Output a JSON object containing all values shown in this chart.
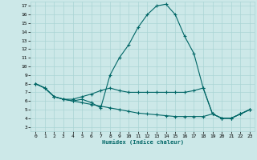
{
  "xlabel": "Humidex (Indice chaleur)",
  "x_ticks": [
    0,
    1,
    2,
    3,
    4,
    5,
    6,
    7,
    8,
    9,
    10,
    11,
    12,
    13,
    14,
    15,
    16,
    17,
    18,
    19,
    20,
    21,
    22,
    23
  ],
  "y_ticks": [
    3,
    4,
    5,
    6,
    7,
    8,
    9,
    10,
    11,
    12,
    13,
    14,
    15,
    16,
    17
  ],
  "xlim": [
    -0.5,
    23.5
  ],
  "ylim": [
    2.5,
    17.5
  ],
  "bg_color": "#cce8e8",
  "grid_color": "#aad4d4",
  "line_color": "#006666",
  "line1_x": [
    0,
    1,
    2,
    3,
    4,
    5,
    6,
    7,
    8,
    9,
    10,
    11,
    12,
    13,
    14,
    15,
    16,
    17,
    18,
    19,
    20,
    21,
    22,
    23
  ],
  "line1_y": [
    8.0,
    7.5,
    6.5,
    6.2,
    6.0,
    6.2,
    5.8,
    5.2,
    9.0,
    11.0,
    12.5,
    14.5,
    16.0,
    17.0,
    17.2,
    16.0,
    13.5,
    11.5,
    7.5,
    4.5,
    4.0,
    4.0,
    4.5,
    5.0
  ],
  "line2_x": [
    0,
    1,
    2,
    3,
    4,
    5,
    6,
    7,
    8,
    9,
    10,
    11,
    12,
    13,
    14,
    15,
    16,
    17,
    18,
    19,
    20,
    21,
    22,
    23
  ],
  "line2_y": [
    8.0,
    7.5,
    6.5,
    6.2,
    6.2,
    6.5,
    6.8,
    7.2,
    7.5,
    7.2,
    7.0,
    7.0,
    7.0,
    7.0,
    7.0,
    7.0,
    7.0,
    7.2,
    7.5,
    4.5,
    4.0,
    4.0,
    4.5,
    5.0
  ],
  "line3_x": [
    0,
    1,
    2,
    3,
    4,
    5,
    6,
    7,
    8,
    9,
    10,
    11,
    12,
    13,
    14,
    15,
    16,
    17,
    18,
    19,
    20,
    21,
    22,
    23
  ],
  "line3_y": [
    8.0,
    7.5,
    6.5,
    6.2,
    6.0,
    5.8,
    5.6,
    5.4,
    5.2,
    5.0,
    4.8,
    4.6,
    4.5,
    4.4,
    4.3,
    4.2,
    4.2,
    4.2,
    4.2,
    4.5,
    4.0,
    4.0,
    4.5,
    5.0
  ]
}
